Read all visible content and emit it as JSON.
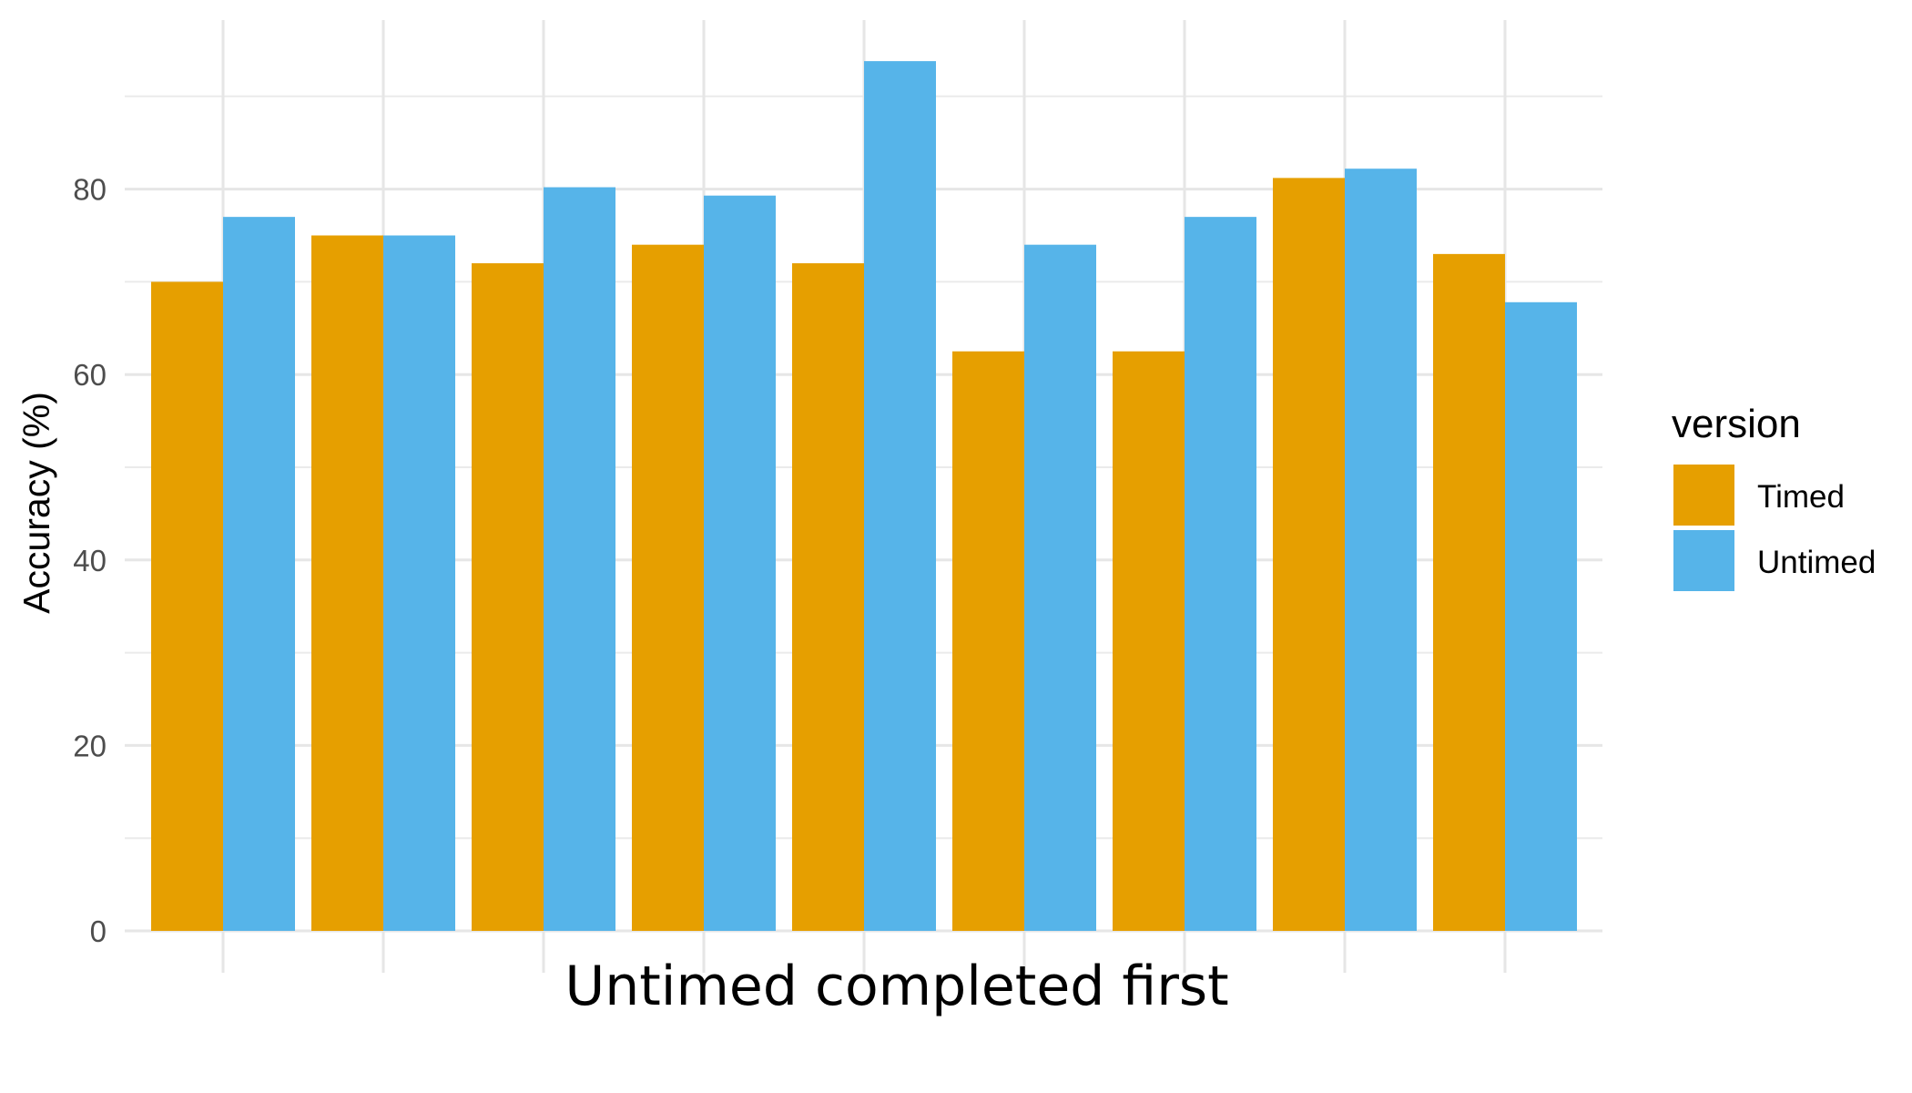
{
  "chart_data": {
    "type": "bar",
    "title": "",
    "xlabel": "Untimed completed first",
    "ylabel": "Accuracy (%)",
    "ylim": [
      0,
      100
    ],
    "yticks": [
      "0",
      "20",
      "40",
      "60",
      "80"
    ],
    "grid": true,
    "legend": {
      "title": "version",
      "placement": "right"
    },
    "categories": [
      "",
      "",
      "",
      "",
      "",
      "",
      "",
      "",
      ""
    ],
    "series": [
      {
        "name": "Timed",
        "color": "#E69F00",
        "values": [
          70,
          75,
          72,
          74,
          72,
          62.5,
          62.5,
          81.2,
          73
        ]
      },
      {
        "name": "Untimed",
        "color": "#56B4E9",
        "values": [
          77,
          75,
          80.2,
          79.3,
          93.8,
          74,
          77,
          82.2,
          67.8
        ]
      }
    ]
  }
}
